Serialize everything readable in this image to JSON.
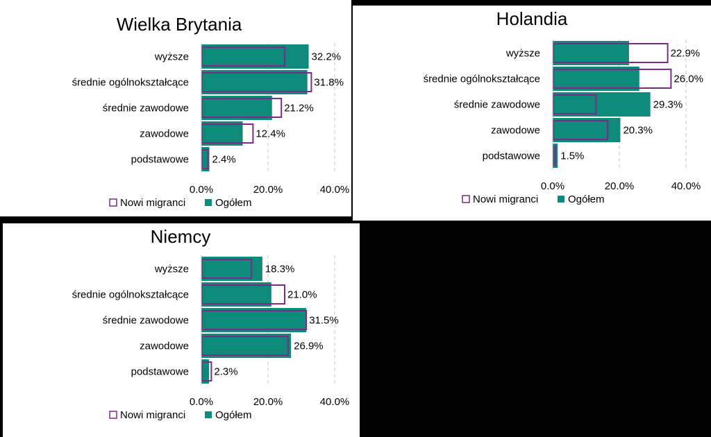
{
  "colors": {
    "ogolem": "#0d8a7a",
    "nowi_migranci": "#7a2b86",
    "background": "#000000"
  },
  "legend": {
    "nowi_migranci": "Nowi migranci",
    "ogolem": "Ogółem"
  },
  "chart_data": [
    {
      "type": "bar",
      "orientation": "horizontal",
      "title": "Wielka Brytania",
      "categories": [
        "wyższe",
        "średnie ogólnokształcące",
        "średnie zawodowe",
        "zawodowe",
        "podstawowe"
      ],
      "series": [
        {
          "name": "Nowi migranci",
          "style": "outline",
          "values": [
            25.0,
            33.0,
            24.0,
            15.5,
            2.0
          ]
        },
        {
          "name": "Ogółem",
          "style": "filled",
          "values": [
            32.2,
            31.8,
            21.2,
            12.4,
            2.4
          ]
        }
      ],
      "value_labels": [
        "32.2%",
        "31.8%",
        "21.2%",
        "12.4%",
        "2.4%"
      ],
      "xlim": [
        0,
        40
      ],
      "xticks": [
        "0.0%",
        "20.0%",
        "40.0%"
      ],
      "grid": true,
      "legend_position": "bottom"
    },
    {
      "type": "bar",
      "orientation": "horizontal",
      "title": "Holandia",
      "categories": [
        "wyższe",
        "średnie ogólnokształcące",
        "średnie zawodowe",
        "zawodowe",
        "podstawowe"
      ],
      "series": [
        {
          "name": "Nowi migranci",
          "style": "outline",
          "values": [
            34.5,
            35.5,
            13.0,
            16.5,
            0.8
          ]
        },
        {
          "name": "Ogółem",
          "style": "filled",
          "values": [
            22.9,
            26.0,
            29.3,
            20.3,
            1.5
          ]
        }
      ],
      "value_labels": [
        "22.9%",
        "26.0%",
        "29.3%",
        "20.3%",
        "1.5%"
      ],
      "xlim": [
        0,
        40
      ],
      "xticks": [
        "0.0%",
        "20.0%",
        "40.0%"
      ],
      "grid": true,
      "legend_position": "bottom"
    },
    {
      "type": "bar",
      "orientation": "horizontal",
      "title": "Niemcy",
      "categories": [
        "wyższe",
        "średnie ogólnokształcące",
        "średnie zawodowe",
        "zawodowe",
        "podstawowe"
      ],
      "series": [
        {
          "name": "Nowi migranci",
          "style": "outline",
          "values": [
            15.0,
            25.0,
            31.5,
            26.0,
            3.0
          ]
        },
        {
          "name": "Ogółem",
          "style": "filled",
          "values": [
            18.3,
            21.0,
            31.5,
            26.9,
            2.3
          ]
        }
      ],
      "value_labels": [
        "18.3%",
        "21.0%",
        "31.5%",
        "26.9%",
        "2.3%"
      ],
      "xlim": [
        0,
        40
      ],
      "xticks": [
        "0.0%",
        "20.0%",
        "40.0%"
      ],
      "grid": true,
      "legend_position": "bottom"
    }
  ]
}
